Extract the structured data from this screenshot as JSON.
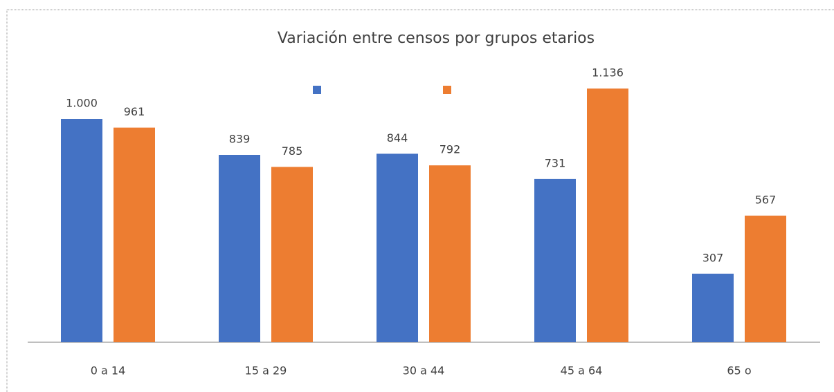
{
  "chart_data": {
    "type": "bar",
    "title": "Variación entre censos por grupos etarios",
    "categories": [
      "0 a 14",
      "15 a 29",
      "30 a 44",
      "45 a 64",
      "65 o"
    ],
    "series": [
      {
        "color": "#4472c4",
        "values": [
          1000,
          839,
          844,
          731,
          307
        ],
        "value_labels": [
          "1.000",
          "839",
          "844",
          "731",
          "307"
        ]
      },
      {
        "color": "#ed7d31",
        "values": [
          961,
          785,
          792,
          1136,
          567
        ],
        "value_labels": [
          "961",
          "785",
          "792",
          "1.136",
          "567"
        ]
      }
    ],
    "legend": "top"
  }
}
